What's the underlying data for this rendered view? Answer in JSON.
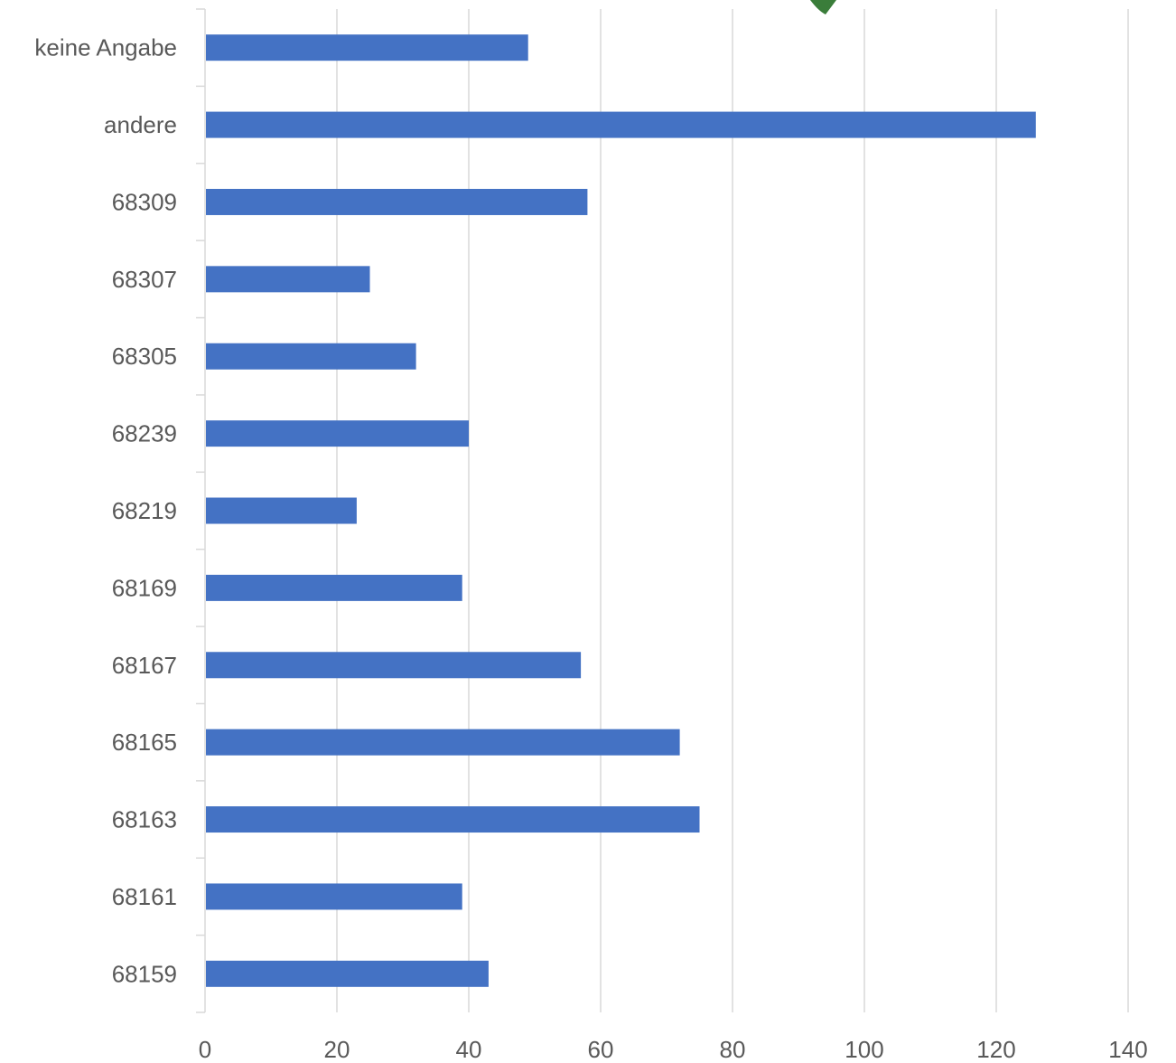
{
  "chart_data": {
    "type": "bar",
    "orientation": "horizontal",
    "categories": [
      "keine Angabe",
      "andere",
      "68309",
      "68307",
      "68305",
      "68239",
      "68219",
      "68169",
      "68167",
      "68165",
      "68163",
      "68161",
      "68159"
    ],
    "values": [
      49,
      126,
      58,
      25,
      32,
      40,
      23,
      39,
      57,
      72,
      75,
      39,
      43
    ],
    "xlim": [
      0,
      140
    ],
    "xticks": [
      0,
      20,
      40,
      60,
      80,
      100,
      120,
      140
    ],
    "grid": true,
    "bar_color": "#4472c4",
    "decoration_color": "#3a7d3a",
    "title": "",
    "xlabel": "",
    "ylabel": ""
  }
}
